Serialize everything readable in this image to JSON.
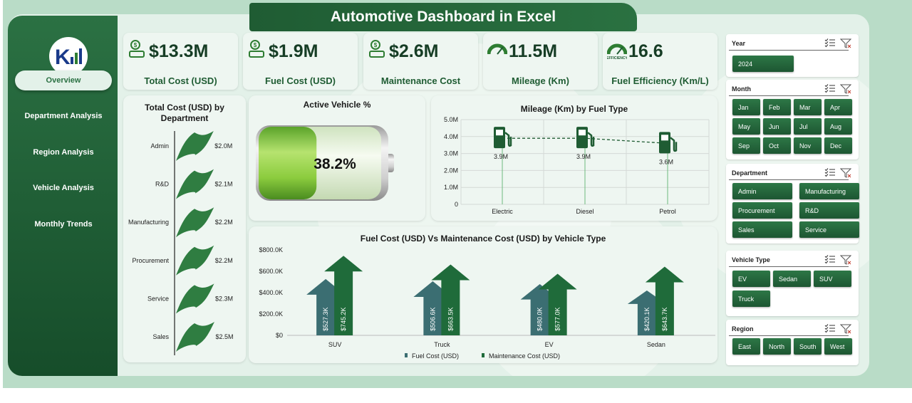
{
  "header": {
    "title": "Automotive Dashboard in Excel"
  },
  "sidebar": {
    "logo_text": "K",
    "items": [
      {
        "label": "Overview",
        "active": true
      },
      {
        "label": "Department Analysis"
      },
      {
        "label": "Region Analysis"
      },
      {
        "label": "Vehicle Analysis"
      },
      {
        "label": "Monthly Trends"
      }
    ]
  },
  "kpis": [
    {
      "value": "$13.3M",
      "label": "Total Cost (USD)",
      "icon": "money-icon"
    },
    {
      "value": "$1.9M",
      "label": "Fuel Cost (USD)",
      "icon": "fuel-money-icon"
    },
    {
      "value": "$2.6M",
      "label": "Maintenance Cost",
      "icon": "maintenance-icon"
    },
    {
      "value": "11.5M",
      "label": "Mileage (Km)",
      "icon": "gauge-icon"
    },
    {
      "value": "16.6",
      "label": "Fuel Efficiency (Km/L)",
      "icon": "efficiency-icon",
      "icon_text": "EFFICIENCY"
    }
  ],
  "colors": {
    "primary": "#1f5c33",
    "accent": "#2e7d32",
    "teal": "#3b6e72",
    "light": "#e3f1e9"
  },
  "dept_chart": {
    "title": "Total Cost (USD) by Department",
    "chart_data": {
      "type": "bar",
      "categories": [
        "Admin",
        "R&D",
        "Manufacturing",
        "Procurement",
        "Service",
        "Sales"
      ],
      "values": [
        2.0,
        2.1,
        2.2,
        2.2,
        2.3,
        2.5
      ],
      "labels": [
        "$2.0M",
        "$2.1M",
        "$2.2M",
        "$2.2M",
        "$2.3M",
        "$2.5M"
      ],
      "orientation": "horizontal"
    }
  },
  "active_vehicle": {
    "title": "Active Vehicle %",
    "value": 0.382,
    "label": "38.2%"
  },
  "mileage_chart": {
    "title": "Mileage (Km) by Fuel Type",
    "chart_data": {
      "type": "line",
      "categories": [
        "Electric",
        "Diesel",
        "Petrol"
      ],
      "values": [
        3.9,
        3.9,
        3.6
      ],
      "labels": [
        "3.9M",
        "3.9M",
        "3.6M"
      ],
      "yticks": [
        "0",
        "1.0M",
        "2.0M",
        "3.0M",
        "4.0M",
        "5.0M"
      ],
      "ylim": [
        0,
        5
      ]
    }
  },
  "cost_chart": {
    "title": "Fuel Cost (USD) Vs Maintenance Cost (USD) by Vehicle Type",
    "chart_data": {
      "type": "bar",
      "categories": [
        "SUV",
        "Truck",
        "EV",
        "Sedan"
      ],
      "series": [
        {
          "name": "Fuel Cost (USD)",
          "values": [
            527.3,
            506.6,
            480.0,
            420.1
          ],
          "labels": [
            "$527.3K",
            "$506.6K",
            "$480.0K",
            "$420.1K"
          ],
          "color": "#3b6e72"
        },
        {
          "name": "Maintenance Cost (USD)",
          "values": [
            745.2,
            663.5,
            577.0,
            643.7
          ],
          "labels": [
            "$745.2K",
            "$663.5K",
            "$577.0K",
            "$643.7K"
          ],
          "color": "#1f6b3a"
        }
      ],
      "yticks": [
        "$0",
        "$200.0K",
        "$400.0K",
        "$600.0K",
        "$800.0K"
      ],
      "ylim": [
        0,
        800
      ]
    }
  },
  "slicers": [
    {
      "title": "Year",
      "items": [
        "2024"
      ]
    },
    {
      "title": "Month",
      "items": [
        "Jan",
        "Feb",
        "Mar",
        "Apr",
        "May",
        "Jun",
        "Jul",
        "Aug",
        "Sep",
        "Oct",
        "Nov",
        "Dec"
      ]
    },
    {
      "title": "Department",
      "items": [
        "Admin",
        "Manufacturing",
        "Procurement",
        "R&D",
        "Sales",
        "Service"
      ]
    },
    {
      "title": "Vehicle Type",
      "items": [
        "EV",
        "Sedan",
        "SUV",
        "Truck"
      ]
    },
    {
      "title": "Region",
      "items": [
        "East",
        "North",
        "South",
        "West"
      ]
    }
  ]
}
